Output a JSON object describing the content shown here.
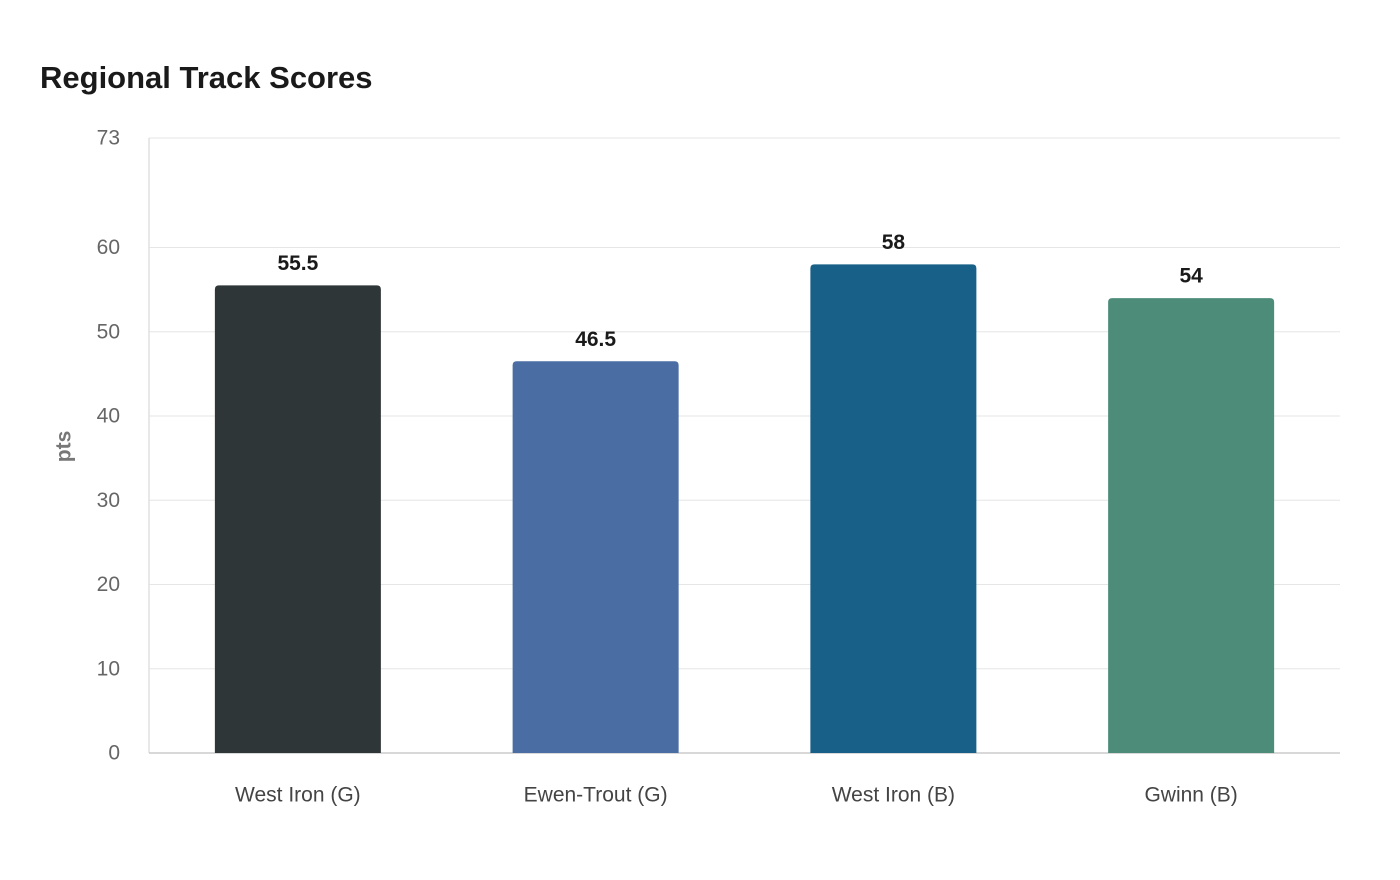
{
  "chart_data": {
    "type": "bar",
    "title": "Regional Track Scores",
    "xlabel": "",
    "ylabel": "pts",
    "categories": [
      "West Iron (G)",
      "Ewen-Trout (G)",
      "West Iron (B)",
      "Gwinn (B)"
    ],
    "values": [
      55.5,
      46.5,
      58,
      54
    ],
    "value_labels": [
      "55.5",
      "46.5",
      "58",
      "54"
    ],
    "colors": [
      "#2e3638",
      "#4a6ea3",
      "#186088",
      "#4e8c7a"
    ],
    "ylim": [
      0,
      73
    ],
    "yticks": [
      0,
      10,
      20,
      30,
      40,
      50,
      60,
      73
    ],
    "grid": true,
    "legend": "none"
  }
}
